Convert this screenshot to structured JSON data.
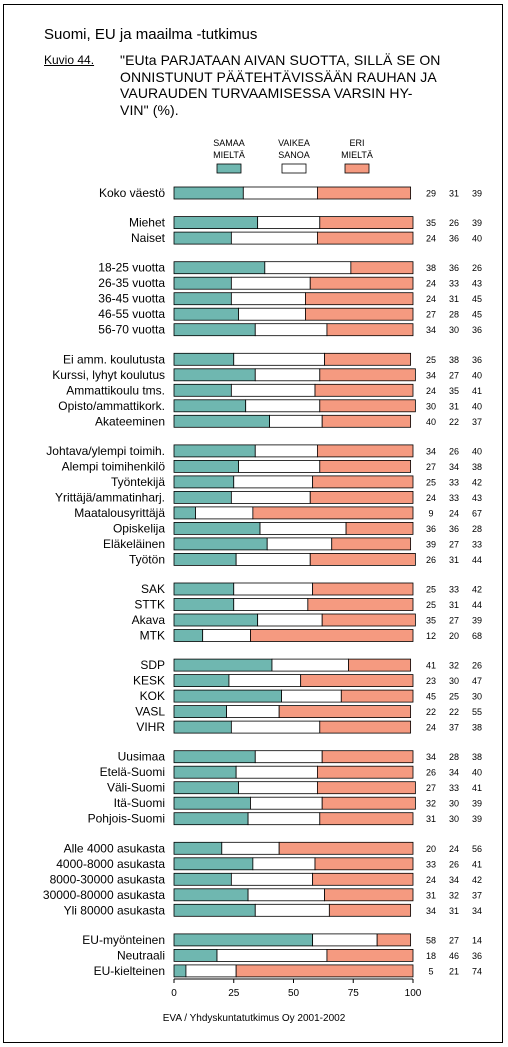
{
  "header": "Suomi, EU ja maailma -tutkimus",
  "figure_label": "Kuvio 44.",
  "source": "EVA / Yhdyskuntatutkimus Oy 2001-2002",
  "colors": {
    "samaa": "#6fb7b0",
    "vaikea": "#ffffff",
    "eri": "#f59a80"
  },
  "chart_data": {
    "type": "bar",
    "orientation": "horizontal",
    "stacked": true,
    "title": "\"EUta PARJATAAN AIVAN SUOTTA, SILLÄ SE ON ONNISTUNUT PÄÄTEHTÄVISSÄÄN RAUHAN JA VAURAUDEN TURVAAMISESSA VARSIN HYVIN\" (%).",
    "title_lines": [
      "\"EUta PARJATAAN AIVAN SUOTTA, SILLÄ SE ON",
      "ONNISTUNUT PÄÄTEHTÄVISSÄÄN RAUHAN JA",
      "VAURAUDEN TURVAAMISESSA VARSIN HY-",
      "VIN\" (%)."
    ],
    "legend": [
      {
        "lines": [
          "SAMAA",
          "MIELTÄ"
        ],
        "color": "#6fb7b0"
      },
      {
        "lines": [
          "VAIKEA",
          "SANOA"
        ],
        "color": "#ffffff"
      },
      {
        "lines": [
          "ERI",
          "MIELTÄ"
        ],
        "color": "#f59a80"
      }
    ],
    "legend_position": "top",
    "xlim": [
      0,
      100
    ],
    "xticks": [
      0,
      25,
      50,
      75,
      100
    ],
    "groups": [
      {
        "rows": [
          {
            "label": "Koko väestö",
            "values": [
              29,
              31,
              39
            ]
          }
        ]
      },
      {
        "rows": [
          {
            "label": "Miehet",
            "values": [
              35,
              26,
              39
            ]
          },
          {
            "label": "Naiset",
            "values": [
              24,
              36,
              40
            ]
          }
        ]
      },
      {
        "rows": [
          {
            "label": "18-25 vuotta",
            "values": [
              38,
              36,
              26
            ]
          },
          {
            "label": "26-35 vuotta",
            "values": [
              24,
              33,
              43
            ]
          },
          {
            "label": "36-45 vuotta",
            "values": [
              24,
              31,
              45
            ]
          },
          {
            "label": "46-55 vuotta",
            "values": [
              27,
              28,
              45
            ]
          },
          {
            "label": "56-70 vuotta",
            "values": [
              34,
              30,
              36
            ]
          }
        ]
      },
      {
        "rows": [
          {
            "label": "Ei amm. koulutusta",
            "values": [
              25,
              38,
              36
            ]
          },
          {
            "label": "Kurssi, lyhyt koulutus",
            "values": [
              34,
              27,
              40
            ]
          },
          {
            "label": "Ammattikoulu tms.",
            "values": [
              24,
              35,
              41
            ]
          },
          {
            "label": "Opisto/ammattikork.",
            "values": [
              30,
              31,
              40
            ]
          },
          {
            "label": "Akateeminen",
            "values": [
              40,
              22,
              37
            ]
          }
        ]
      },
      {
        "rows": [
          {
            "label": "Johtava/ylempi toimih.",
            "values": [
              34,
              26,
              40
            ]
          },
          {
            "label": "Alempi toimihenkilö",
            "values": [
              27,
              34,
              38
            ]
          },
          {
            "label": "Työntekijä",
            "values": [
              25,
              33,
              42
            ]
          },
          {
            "label": "Yrittäjä/ammatinharj.",
            "values": [
              24,
              33,
              43
            ]
          },
          {
            "label": "Maatalousyrittäjä",
            "values": [
              9,
              24,
              67
            ]
          },
          {
            "label": "Opiskelija",
            "values": [
              36,
              36,
              28
            ]
          },
          {
            "label": "Eläkeläinen",
            "values": [
              39,
              27,
              33
            ]
          },
          {
            "label": "Työtön",
            "values": [
              26,
              31,
              44
            ]
          }
        ]
      },
      {
        "rows": [
          {
            "label": "SAK",
            "values": [
              25,
              33,
              42
            ]
          },
          {
            "label": "STTK",
            "values": [
              25,
              31,
              44
            ]
          },
          {
            "label": "Akava",
            "values": [
              35,
              27,
              39
            ]
          },
          {
            "label": "MTK",
            "values": [
              12,
              20,
              68
            ]
          }
        ]
      },
      {
        "rows": [
          {
            "label": "SDP",
            "values": [
              41,
              32,
              26
            ]
          },
          {
            "label": "KESK",
            "values": [
              23,
              30,
              47
            ]
          },
          {
            "label": "KOK",
            "values": [
              45,
              25,
              30
            ]
          },
          {
            "label": "VASL",
            "values": [
              22,
              22,
              55
            ]
          },
          {
            "label": "VIHR",
            "values": [
              24,
              37,
              38
            ]
          }
        ]
      },
      {
        "rows": [
          {
            "label": "Uusimaa",
            "values": [
              34,
              28,
              38
            ]
          },
          {
            "label": "Etelä-Suomi",
            "values": [
              26,
              34,
              40
            ]
          },
          {
            "label": "Väli-Suomi",
            "values": [
              27,
              33,
              41
            ]
          },
          {
            "label": "Itä-Suomi",
            "values": [
              32,
              30,
              39
            ]
          },
          {
            "label": "Pohjois-Suomi",
            "values": [
              31,
              30,
              39
            ]
          }
        ]
      },
      {
        "rows": [
          {
            "label": "Alle 4000 asukasta",
            "values": [
              20,
              24,
              56
            ]
          },
          {
            "label": "4000-8000 asukasta",
            "values": [
              33,
              26,
              41
            ]
          },
          {
            "label": "8000-30000 asukasta",
            "values": [
              24,
              34,
              42
            ]
          },
          {
            "label": "30000-80000 asukasta",
            "values": [
              31,
              32,
              37
            ]
          },
          {
            "label": "Yli 80000 asukasta",
            "values": [
              34,
              31,
              34
            ]
          }
        ]
      },
      {
        "rows": [
          {
            "label": "EU-myönteinen",
            "values": [
              58,
              27,
              14
            ]
          },
          {
            "label": "Neutraali",
            "values": [
              18,
              46,
              36
            ]
          },
          {
            "label": "EU-kielteinen",
            "values": [
              5,
              21,
              74
            ]
          }
        ]
      }
    ]
  }
}
